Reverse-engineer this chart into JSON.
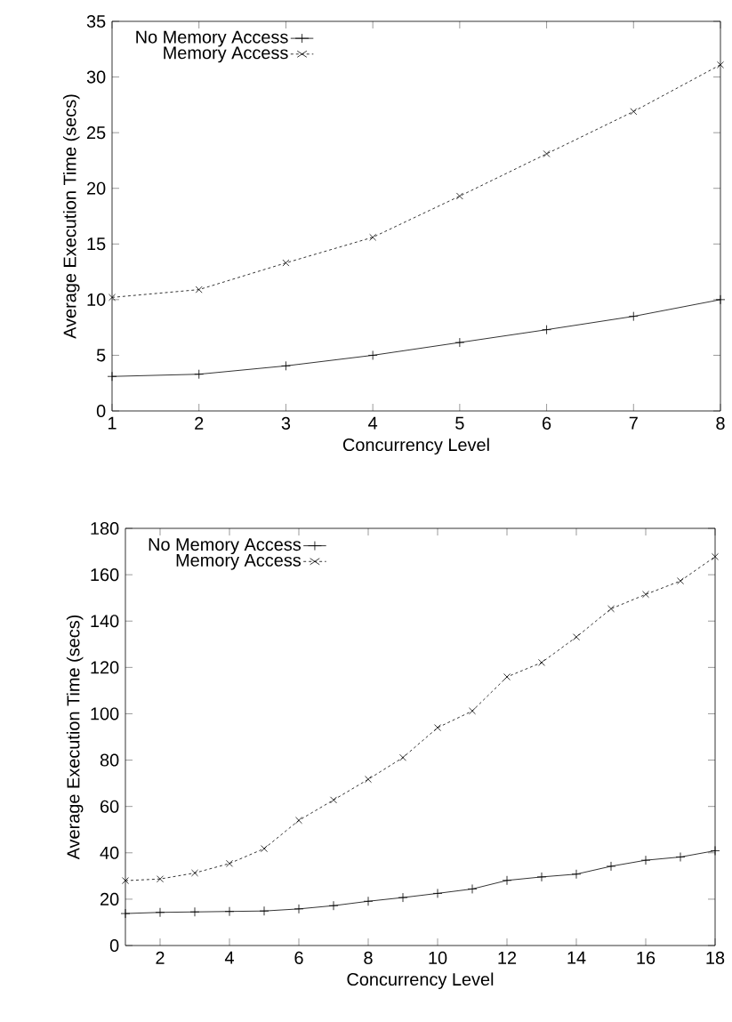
{
  "chart_data": [
    {
      "type": "line",
      "xlabel": "Concurrency Level",
      "ylabel": "Average Execution Time (secs)",
      "x": [
        1,
        2,
        3,
        4,
        5,
        6,
        7,
        8
      ],
      "series": [
        {
          "name": "No Memory Access",
          "color": "#000000",
          "marker": "plus",
          "line_style": "solid",
          "values": [
            3.1,
            3.3,
            4.05,
            5.0,
            6.15,
            7.3,
            8.5,
            10.0
          ]
        },
        {
          "name": "Memory Access",
          "color": "#000000",
          "marker": "cross",
          "line_style": "dashed",
          "values": [
            10.2,
            10.9,
            13.3,
            15.6,
            19.3,
            23.1,
            26.9,
            31.1
          ]
        }
      ],
      "xlim": [
        1,
        8
      ],
      "xticks": [
        1,
        2,
        3,
        4,
        5,
        6,
        7,
        8
      ],
      "ylim": [
        0,
        35
      ],
      "yticks": [
        0,
        5,
        10,
        15,
        20,
        25,
        30,
        35
      ],
      "grid": false,
      "legend": "top left"
    },
    {
      "type": "line",
      "xlabel": "Concurrency Level",
      "ylabel": "Average Execution Time (secs)",
      "x": [
        1,
        2,
        3,
        4,
        5,
        6,
        7,
        8,
        9,
        10,
        11,
        12,
        13,
        14,
        15,
        16,
        17,
        18
      ],
      "series": [
        {
          "name": "No Memory Access",
          "color": "#000000",
          "marker": "plus",
          "line_style": "solid",
          "values": [
            13.8,
            14.3,
            14.5,
            14.7,
            14.9,
            15.8,
            17.2,
            19.1,
            20.7,
            22.5,
            24.4,
            28.1,
            29.6,
            30.8,
            34.2,
            36.8,
            38.2,
            40.9
          ]
        },
        {
          "name": "Memory Access",
          "color": "#000000",
          "marker": "cross",
          "line_style": "dashed",
          "values": [
            28.0,
            28.7,
            31.3,
            35.4,
            41.8,
            54.0,
            62.8,
            71.7,
            81.1,
            94.0,
            101.2,
            115.9,
            122.1,
            133.1,
            145.3,
            151.5,
            157.3,
            167.8
          ]
        }
      ],
      "xlim": [
        1,
        18
      ],
      "xticks": [
        2,
        4,
        6,
        8,
        10,
        12,
        14,
        16,
        18
      ],
      "ylim": [
        0,
        180
      ],
      "yticks": [
        0,
        20,
        40,
        60,
        80,
        100,
        120,
        140,
        160,
        180
      ],
      "grid": false,
      "legend": "top left"
    }
  ]
}
